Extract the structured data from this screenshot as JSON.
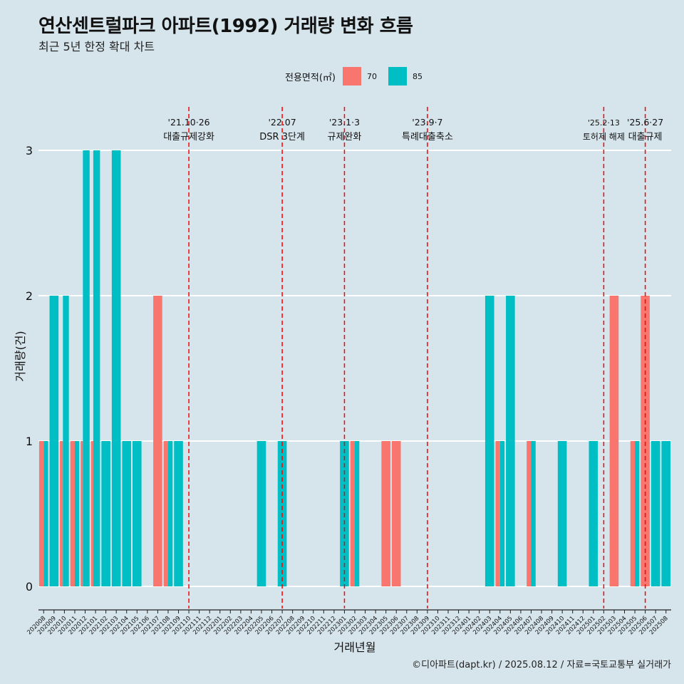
{
  "title": "연산센트럴파크 아파트(1992) 거래량 변화 흐름",
  "subtitle": "최근 5년 한정 확대 차트",
  "caption": "©디아파트(dapt.kr) / 2025.08.12 / 자료=국토교통부 실거래가",
  "legend": {
    "title": "전용면적(㎡)"
  },
  "colors": {
    "70": "#f8766d",
    "85": "#00bfc4",
    "event_line": "#ff0000",
    "grid": "#ffffff",
    "background": "#d6e4ec"
  },
  "chart_data": {
    "type": "bar",
    "xlabel": "거래년월",
    "ylabel": "거래량(건)",
    "ylim": [
      0,
      3
    ],
    "yticks": [
      0,
      1,
      2,
      3
    ],
    "categories": [
      "202008",
      "202009",
      "202010",
      "202011",
      "202012",
      "202101",
      "202102",
      "202103",
      "202104",
      "202105",
      "202106",
      "202107",
      "202108",
      "202109",
      "202110",
      "202111",
      "202112",
      "202201",
      "202202",
      "202203",
      "202204",
      "202205",
      "202206",
      "202207",
      "202208",
      "202209",
      "202210",
      "202211",
      "202212",
      "202301",
      "202302",
      "202303",
      "202304",
      "202305",
      "202306",
      "202307",
      "202308",
      "202309",
      "202310",
      "202311",
      "202312",
      "202401",
      "202402",
      "202403",
      "202404",
      "202405",
      "202406",
      "202407",
      "202408",
      "202409",
      "202410",
      "202411",
      "202412",
      "202501",
      "202502",
      "202503",
      "202504",
      "202505",
      "202506",
      "202507",
      "202508"
    ],
    "series": [
      {
        "name": "70",
        "values": [
          1,
          0,
          1,
          1,
          1,
          1,
          0,
          0,
          0,
          0,
          0,
          2,
          1,
          0,
          0,
          0,
          0,
          0,
          0,
          0,
          0,
          0,
          0,
          0,
          0,
          0,
          0,
          0,
          0,
          0,
          1,
          0,
          0,
          1,
          1,
          0,
          0,
          0,
          0,
          0,
          0,
          0,
          0,
          0,
          1,
          0,
          0,
          1,
          0,
          0,
          0,
          0,
          0,
          0,
          0,
          2,
          0,
          1,
          2,
          0,
          0
        ]
      },
      {
        "name": "85",
        "values": [
          1,
          2,
          2,
          1,
          3,
          3,
          1,
          3,
          1,
          1,
          0,
          0,
          1,
          1,
          0,
          0,
          0,
          0,
          0,
          0,
          0,
          1,
          0,
          1,
          0,
          0,
          0,
          0,
          0,
          1,
          1,
          0,
          0,
          0,
          0,
          0,
          0,
          0,
          0,
          0,
          0,
          0,
          0,
          2,
          1,
          2,
          0,
          1,
          0,
          0,
          1,
          0,
          0,
          1,
          0,
          0,
          0,
          1,
          0,
          1,
          1
        ]
      }
    ],
    "events": [
      {
        "date": "'21.10·26",
        "label": "대출규제강화",
        "x": "202110"
      },
      {
        "date": "'22.07",
        "label": "DSR 3단계",
        "x": "202207"
      },
      {
        "date": "'23.1·3",
        "label": "규제완화",
        "x": "202301"
      },
      {
        "date": "'23.9·7",
        "label": "특례대출축소",
        "x": "202309"
      },
      {
        "date": "'25.2·13",
        "label": "토허제 해제",
        "x": "202502"
      },
      {
        "date": "'25.6·27",
        "label": "대출규제",
        "x": "202506"
      }
    ]
  }
}
